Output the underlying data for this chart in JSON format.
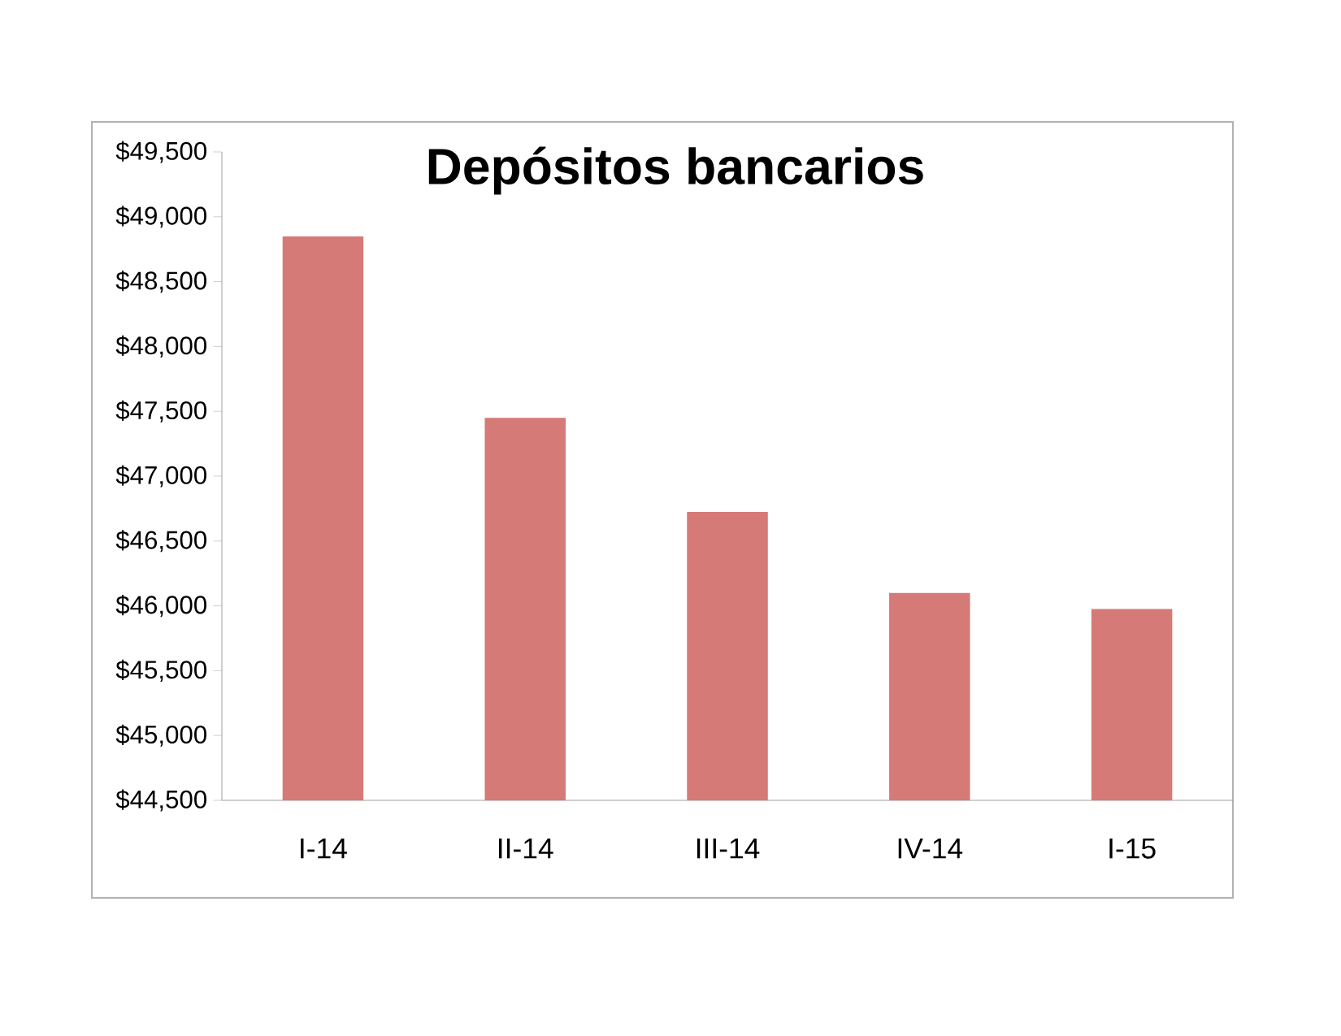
{
  "chart_data": {
    "type": "bar",
    "title": "Depósitos bancarios",
    "categories": [
      "I-14",
      "II-14",
      "III-14",
      "IV-14",
      "I-15"
    ],
    "values": [
      48850,
      47450,
      46725,
      46100,
      45975
    ],
    "color": "#d57a77",
    "ylim": [
      44500,
      49500
    ],
    "yticks": [
      {
        "value": 44500,
        "label": "$44,500"
      },
      {
        "value": 45000,
        "label": "$45,000"
      },
      {
        "value": 45500,
        "label": "$45,500"
      },
      {
        "value": 46000,
        "label": "$46,000"
      },
      {
        "value": 46500,
        "label": "$46,500"
      },
      {
        "value": 47000,
        "label": "$47,000"
      },
      {
        "value": 47500,
        "label": "$47,500"
      },
      {
        "value": 48000,
        "label": "$48,000"
      },
      {
        "value": 48500,
        "label": "$48,500"
      },
      {
        "value": 49000,
        "label": "$49,000"
      },
      {
        "value": 49500,
        "label": "$49,500"
      }
    ],
    "grid": false
  }
}
